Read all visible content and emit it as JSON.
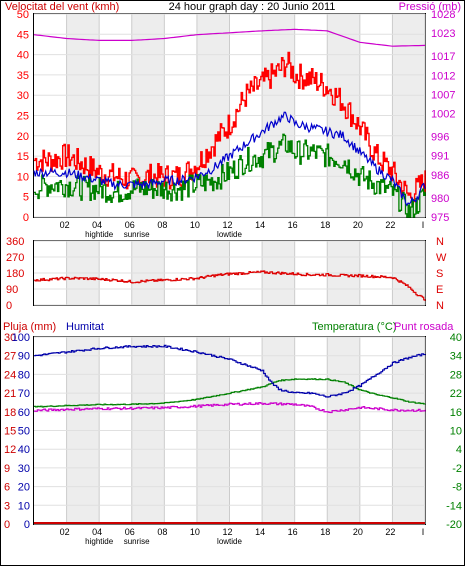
{
  "page": {
    "title": "24 hour graph day : 20 Junio 2011"
  },
  "colors": {
    "wind_avg": "#0000cc",
    "wind_gust": "#ff0000",
    "wind_low": "#008000",
    "pressure": "#cc00cc",
    "direction": "#dd0000",
    "humidity": "#0000aa",
    "temperature": "#008000",
    "dewpoint": "#cc00cc",
    "rain": "#cc0000",
    "grid": "#cccccc",
    "band": "#ededed"
  },
  "time_axis": {
    "tick_labels": [
      "02",
      "04",
      "06",
      "08",
      "10",
      "12",
      "14",
      "16",
      "18",
      "20",
      "22",
      "I"
    ],
    "tick_hours": [
      2,
      4,
      6,
      8,
      10,
      12,
      14,
      16,
      18,
      20,
      22,
      24
    ],
    "events": [
      {
        "label": "hightide",
        "hour": 4
      },
      {
        "label": "sunrise",
        "hour": 6.3
      },
      {
        "label": "lowtide",
        "hour": 12
      }
    ]
  },
  "chart_data": [
    {
      "type": "line",
      "title": "24 hour graph day : 20 Junio 2011",
      "y_left_label": "Velocitat del vent (kmh)",
      "y_right_label": "Pressió (mb)",
      "ylim_left": [
        0,
        50
      ],
      "ylim_right": [
        975,
        1028
      ],
      "y_left_ticks": [
        0,
        5,
        10,
        15,
        20,
        25,
        30,
        35,
        40,
        45,
        50
      ],
      "y_right_ticks": [
        975,
        980,
        986,
        991,
        996,
        1002,
        1007,
        1012,
        1017,
        1023,
        1028
      ],
      "x_range_hours": [
        0,
        24
      ],
      "series": [
        {
          "key": "gust",
          "hours": [
            0,
            1,
            2,
            3,
            4,
            5,
            6,
            7,
            8,
            9,
            10,
            11,
            12,
            13,
            14,
            15,
            15.5,
            16,
            17,
            18,
            19,
            20,
            21,
            22,
            22.5,
            23,
            23.5,
            24
          ],
          "values": [
            14,
            14,
            15,
            13,
            11,
            10,
            9,
            10,
            10,
            10,
            13,
            18,
            23,
            30,
            33,
            36,
            38,
            35,
            34,
            32,
            28,
            22,
            15,
            11,
            8,
            5,
            7,
            9
          ]
        },
        {
          "key": "average",
          "hours": [
            0,
            1,
            2,
            3,
            4,
            5,
            6,
            7,
            8,
            9,
            10,
            11,
            12,
            13,
            14,
            15,
            15.5,
            16,
            17,
            18,
            19,
            20,
            21,
            22,
            22.5,
            23,
            23.5,
            24
          ],
          "values": [
            11,
            11,
            11,
            10,
            9,
            8,
            8,
            8,
            9,
            9,
            10,
            12,
            15,
            18,
            21,
            24,
            25,
            23,
            22,
            21,
            20,
            16,
            12,
            9,
            6,
            3,
            5,
            8
          ]
        },
        {
          "key": "low",
          "hours": [
            0,
            1,
            2,
            3,
            4,
            5,
            6,
            7,
            8,
            9,
            10,
            11,
            12,
            13,
            14,
            15,
            15.5,
            16,
            17,
            18,
            19,
            20,
            21,
            22,
            22.5,
            23,
            23.5,
            24
          ],
          "values": [
            7,
            8,
            8,
            7,
            7,
            6,
            7,
            7,
            7,
            7,
            8,
            9,
            11,
            14,
            15,
            17,
            18,
            16,
            16,
            15,
            14,
            10,
            8,
            6,
            4,
            1,
            3,
            6
          ]
        },
        {
          "key": "pressure",
          "hours": [
            0,
            2,
            4,
            6,
            8,
            10,
            12,
            14,
            16,
            18,
            19,
            20,
            21,
            22,
            24
          ],
          "values": [
            1022.6,
            1021.6,
            1021.1,
            1021.1,
            1021.6,
            1022.6,
            1023.1,
            1023.6,
            1024.0,
            1023.6,
            1022.1,
            1020.6,
            1020.1,
            1019.6,
            1019.8
          ]
        }
      ]
    },
    {
      "type": "line",
      "y_right_label": "N W S E N",
      "ylim_left": [
        0,
        360
      ],
      "y_left_ticks": [
        0,
        90,
        180,
        270,
        360
      ],
      "y_left_tick_labels": [
        "0",
        "90",
        "180",
        "270",
        "360"
      ],
      "y_right_tick_labels": [
        "N",
        "E",
        "S",
        "W",
        "N"
      ],
      "x_range_hours": [
        0,
        24
      ],
      "series": [
        {
          "key": "direction",
          "hours": [
            0,
            1,
            2,
            3,
            4,
            5,
            6,
            7,
            8,
            9,
            10,
            11,
            12,
            13,
            14,
            15,
            16,
            17,
            18,
            19,
            20,
            21,
            22,
            22.5,
            23,
            23.5,
            24
          ],
          "values": [
            140,
            145,
            150,
            150,
            145,
            140,
            130,
            135,
            140,
            145,
            150,
            165,
            175,
            180,
            185,
            180,
            175,
            170,
            170,
            165,
            165,
            160,
            155,
            130,
            100,
            60,
            30
          ]
        }
      ]
    },
    {
      "type": "line",
      "y_left_label": "Pluja (mm)",
      "y_left2_label": "Humitat",
      "y_right_label": "Temperatura (°C)",
      "y_right2_label": "Punt rosada",
      "ylim_rain": [
        0,
        30
      ],
      "ylim_humidity": [
        0,
        100
      ],
      "ylim_temp": [
        -20,
        40
      ],
      "y_rain_ticks": [
        0,
        3,
        6,
        9,
        12,
        15,
        18,
        21,
        24,
        27,
        30
      ],
      "y_humidity_ticks": [
        0,
        10,
        20,
        30,
        40,
        50,
        60,
        70,
        80,
        90,
        100
      ],
      "y_temp_ticks": [
        -20,
        -14,
        -8,
        -2,
        4,
        10,
        16,
        22,
        28,
        34,
        40
      ],
      "x_range_hours": [
        0,
        24
      ],
      "series": [
        {
          "key": "humidity",
          "hours": [
            0,
            2,
            4,
            6,
            8,
            10,
            12,
            14,
            14.5,
            15,
            16,
            17,
            18,
            19,
            20,
            21,
            22,
            23,
            24
          ],
          "values": [
            90,
            92,
            94,
            95,
            95,
            92,
            88,
            82,
            76,
            72,
            70,
            70,
            68,
            70,
            74,
            80,
            86,
            89,
            91
          ]
        },
        {
          "key": "temperature",
          "hours": [
            0,
            2,
            4,
            6,
            8,
            10,
            12,
            14,
            15,
            16,
            17,
            18,
            19,
            20,
            21,
            22,
            23,
            24
          ],
          "values": [
            17.6,
            18.0,
            18.3,
            18.4,
            18.8,
            20.0,
            22.0,
            24.0,
            26.0,
            26.5,
            26.5,
            26.4,
            25.5,
            23.0,
            21.5,
            20.5,
            19.2,
            18.5
          ]
        },
        {
          "key": "dewpoint",
          "hours": [
            0,
            2,
            4,
            6,
            8,
            10,
            12,
            14,
            16,
            17,
            18,
            19,
            20,
            21,
            22,
            24
          ],
          "values": [
            16.4,
            16.8,
            17.0,
            17.1,
            17.3,
            17.8,
            18.4,
            18.7,
            18.4,
            17.6,
            16.0,
            16.6,
            17.4,
            17.0,
            16.6,
            16.4
          ]
        },
        {
          "key": "rain",
          "hours": [
            0,
            24
          ],
          "values": [
            0,
            0
          ]
        }
      ]
    }
  ]
}
